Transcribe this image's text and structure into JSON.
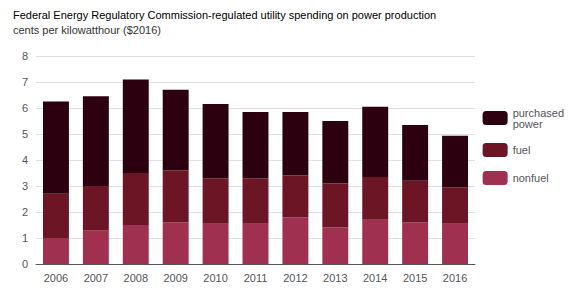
{
  "chart_data": {
    "type": "bar",
    "title": "Federal Energy Regulatory Commission-regulated utility spending on power production",
    "subtitle": "cents per kilowatthour ($2016)",
    "categories": [
      "2006",
      "2007",
      "2008",
      "2009",
      "2010",
      "2011",
      "2012",
      "2013",
      "2014",
      "2015",
      "2016"
    ],
    "series": [
      {
        "name": "nonfuel",
        "color": "#a03050",
        "values": [
          1.0,
          1.3,
          1.5,
          1.6,
          1.55,
          1.55,
          1.8,
          1.4,
          1.7,
          1.6,
          1.55
        ]
      },
      {
        "name": "fuel",
        "color": "#6b1525",
        "values": [
          1.7,
          1.7,
          2.0,
          2.0,
          1.75,
          1.75,
          1.6,
          1.7,
          1.65,
          1.6,
          1.4
        ]
      },
      {
        "name": "purchased\npower",
        "color": "#2d0010",
        "values": [
          3.55,
          3.45,
          3.6,
          3.1,
          2.85,
          2.55,
          2.45,
          2.4,
          2.7,
          2.15,
          1.98
        ]
      }
    ],
    "stacked": true,
    "ylim": [
      0,
      8
    ],
    "yticks": [
      0,
      1,
      2,
      3,
      4,
      5,
      6,
      7,
      8
    ],
    "grid": true,
    "legend": "right"
  }
}
